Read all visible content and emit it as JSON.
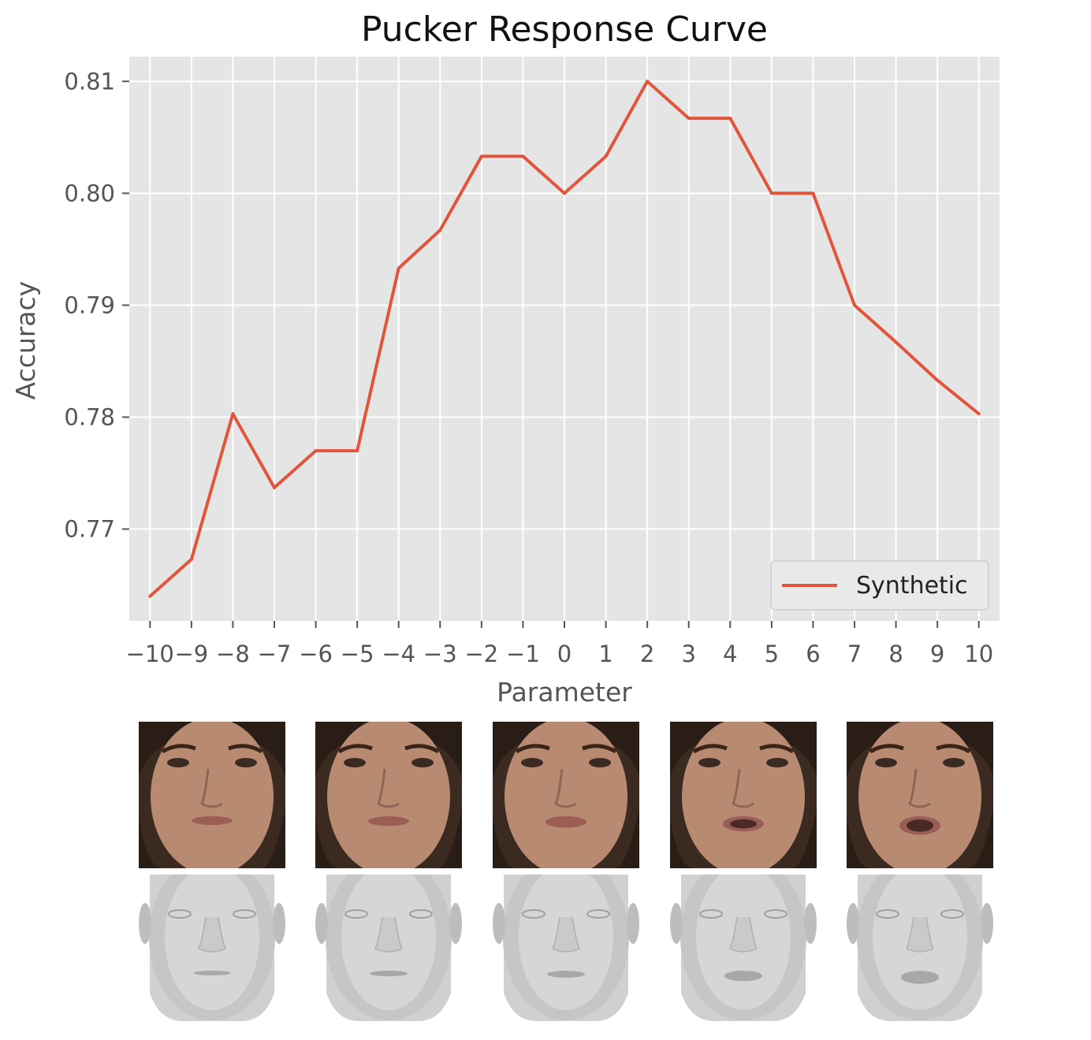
{
  "chart_data": {
    "type": "line",
    "title": "Pucker Response Curve",
    "xlabel": "Parameter",
    "ylabel": "Accuracy",
    "x": [
      -10,
      -9,
      -8,
      -7,
      -6,
      -5,
      -4,
      -3,
      -2,
      -1,
      0,
      1,
      2,
      3,
      4,
      5,
      6,
      7,
      8,
      9,
      10
    ],
    "x_tick_labels": [
      "−10",
      "−9",
      "−8",
      "−7",
      "−6",
      "−5",
      "−4",
      "−3",
      "−2",
      "−1",
      "0",
      "1",
      "2",
      "3",
      "4",
      "5",
      "6",
      "7",
      "8",
      "9",
      "10"
    ],
    "y_ticks": [
      0.77,
      0.78,
      0.79,
      0.8,
      0.81
    ],
    "y_tick_labels": [
      "0.77",
      "0.78",
      "0.79",
      "0.80",
      "0.81"
    ],
    "xlim": [
      -10.5,
      10.5
    ],
    "ylim": [
      0.7618,
      0.8122
    ],
    "grid": true,
    "style": "ggplot",
    "legend_position": "lower right",
    "series": [
      {
        "name": "Synthetic",
        "color": "#e2553d",
        "values": [
          0.764,
          0.7673,
          0.7803,
          0.7737,
          0.777,
          0.777,
          0.7933,
          0.7967,
          0.8033,
          0.8033,
          0.8,
          0.8033,
          0.81,
          0.8067,
          0.8067,
          0.8,
          0.8,
          0.79,
          0.7867,
          0.7833,
          0.7803
        ]
      }
    ]
  },
  "thumbnails": {
    "face_photos": [
      "face-photo-1",
      "face-photo-2",
      "face-photo-3",
      "face-photo-4",
      "face-photo-5"
    ],
    "mesh_renders": [
      "face-mesh-1",
      "face-mesh-2",
      "face-mesh-3",
      "face-mesh-4",
      "face-mesh-5"
    ],
    "mouth_open_levels": [
      0,
      0.1,
      0.25,
      0.6,
      0.9
    ],
    "colors": {
      "background_dark": "#3a2a20",
      "skin": "#b98a72",
      "hair": "#2a1d16",
      "mesh": "#d0d0d0"
    }
  }
}
